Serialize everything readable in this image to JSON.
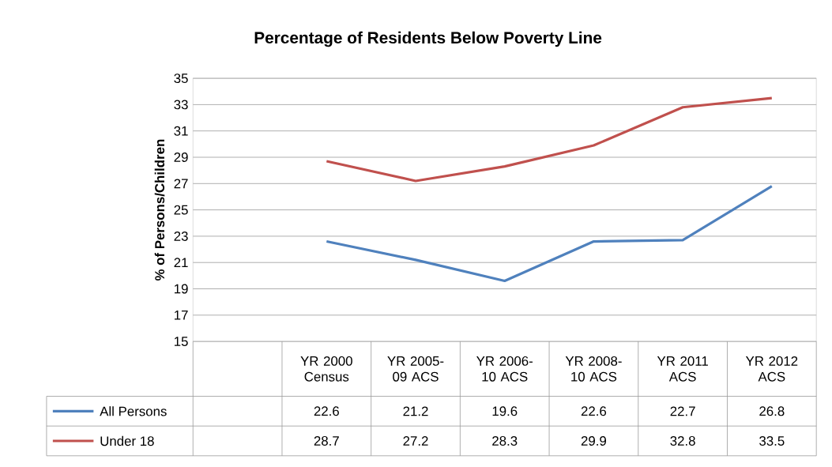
{
  "chart_data": {
    "type": "line",
    "title": "Percentage of Residents Below Poverty Line",
    "ylabel": "% of Persons/Children",
    "categories": [
      "YR 2000 Census",
      "YR 2005-09 ACS",
      "YR 2006-10 ACS",
      "YR 2008-10 ACS",
      "YR 2011 ACS",
      "YR 2012 ACS"
    ],
    "series": [
      {
        "name": "All Persons",
        "color": "#4f81bd",
        "values": [
          22.6,
          21.2,
          19.6,
          22.6,
          22.7,
          26.8
        ]
      },
      {
        "name": "Under 18",
        "color": "#c0504d",
        "values": [
          28.7,
          27.2,
          28.3,
          29.9,
          32.8,
          33.5
        ]
      }
    ],
    "ylim": [
      15,
      35
    ],
    "yticks": [
      15,
      17,
      19,
      21,
      23,
      25,
      27,
      29,
      31,
      33,
      35
    ],
    "grid": "y",
    "legend": "bottom",
    "data_labels": true
  }
}
